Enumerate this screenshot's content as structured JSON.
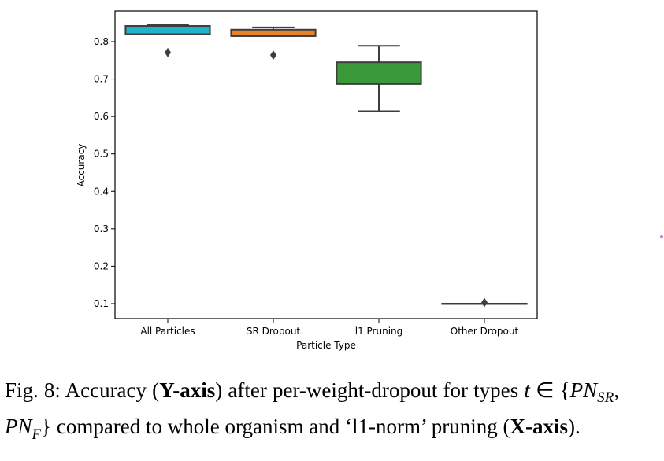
{
  "chart_data": {
    "type": "box",
    "title": "",
    "xlabel": "Particle Type",
    "ylabel": "Accuracy",
    "ylim": [
      0.06,
      0.882
    ],
    "yticks": [
      0.1,
      0.2,
      0.3,
      0.4,
      0.5,
      0.6,
      0.7,
      0.8
    ],
    "categories": [
      "All Particles",
      "SR Dropout",
      "l1 Pruning",
      "Other Dropout"
    ],
    "boxes": [
      {
        "name": "All Particles",
        "color": "#1fb5c8",
        "whisker_low": 0.82,
        "q1": 0.82,
        "median": 0.82,
        "q3": 0.842,
        "whisker_high": 0.845,
        "outliers": [
          0.771
        ]
      },
      {
        "name": "SR Dropout",
        "color": "#e8832a",
        "whisker_low": 0.815,
        "q1": 0.815,
        "median": 0.815,
        "q3": 0.832,
        "whisker_high": 0.838,
        "outliers": [
          0.764
        ]
      },
      {
        "name": "l1 Pruning",
        "color": "#3a9a3a",
        "whisker_low": 0.614,
        "q1": 0.687,
        "median": 0.687,
        "q3": 0.745,
        "whisker_high": 0.789,
        "outliers": []
      },
      {
        "name": "Other Dropout",
        "color": "#d62728",
        "whisker_low": 0.1,
        "q1": 0.1,
        "median": 0.1,
        "q3": 0.1,
        "whisker_high": 0.1,
        "outliers": [
          0.103
        ]
      }
    ],
    "grid": false
  },
  "caption": {
    "label": "Fig. 8:",
    "t1": " Accuracy (",
    "b1": "Y-axis",
    "t2": ") after per-weight-dropout for types ",
    "t3": "t",
    "t4": " ∈ {",
    "t5": "PN",
    "s1": "SR",
    "t6": ", ",
    "t7": "PN",
    "s2": "F",
    "t8": "} compared to whole organism and ‘l1-norm’ pruning (",
    "b2": "X-axis",
    "t9": ")."
  }
}
